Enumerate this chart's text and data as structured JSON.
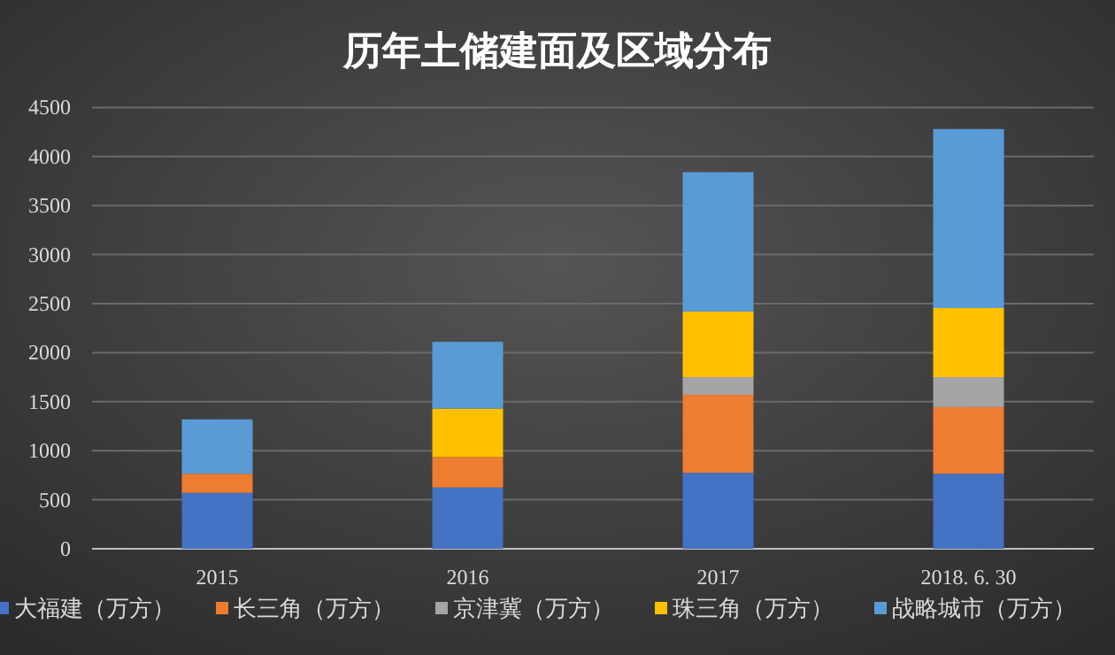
{
  "chart_data": {
    "type": "bar",
    "stacked": true,
    "title": "历年土储建面及区域分布",
    "categories": [
      "2015",
      "2016",
      "2017",
      "2018. 6. 30"
    ],
    "series": [
      {
        "name": "大福建（万方）",
        "color": "#4472c4",
        "values": [
          570,
          625,
          775,
          765
        ]
      },
      {
        "name": "长三角（万方）",
        "color": "#ed7d31",
        "values": [
          195,
          310,
          795,
          680
        ]
      },
      {
        "name": "京津冀（万方）",
        "color": "#a5a5a5",
        "values": [
          0,
          0,
          180,
          305
        ]
      },
      {
        "name": "珠三角（万方）",
        "color": "#ffc000",
        "values": [
          0,
          495,
          670,
          705
        ]
      },
      {
        "name": "战略城市（万方）",
        "color": "#5b9bd5",
        "values": [
          555,
          680,
          1420,
          1825
        ]
      }
    ],
    "ylim": [
      0,
      4500
    ],
    "yticks": [
      0,
      500,
      1000,
      1500,
      2000,
      2500,
      3000,
      3500,
      4000,
      4500
    ],
    "grid": "y",
    "legend": "bottom"
  }
}
